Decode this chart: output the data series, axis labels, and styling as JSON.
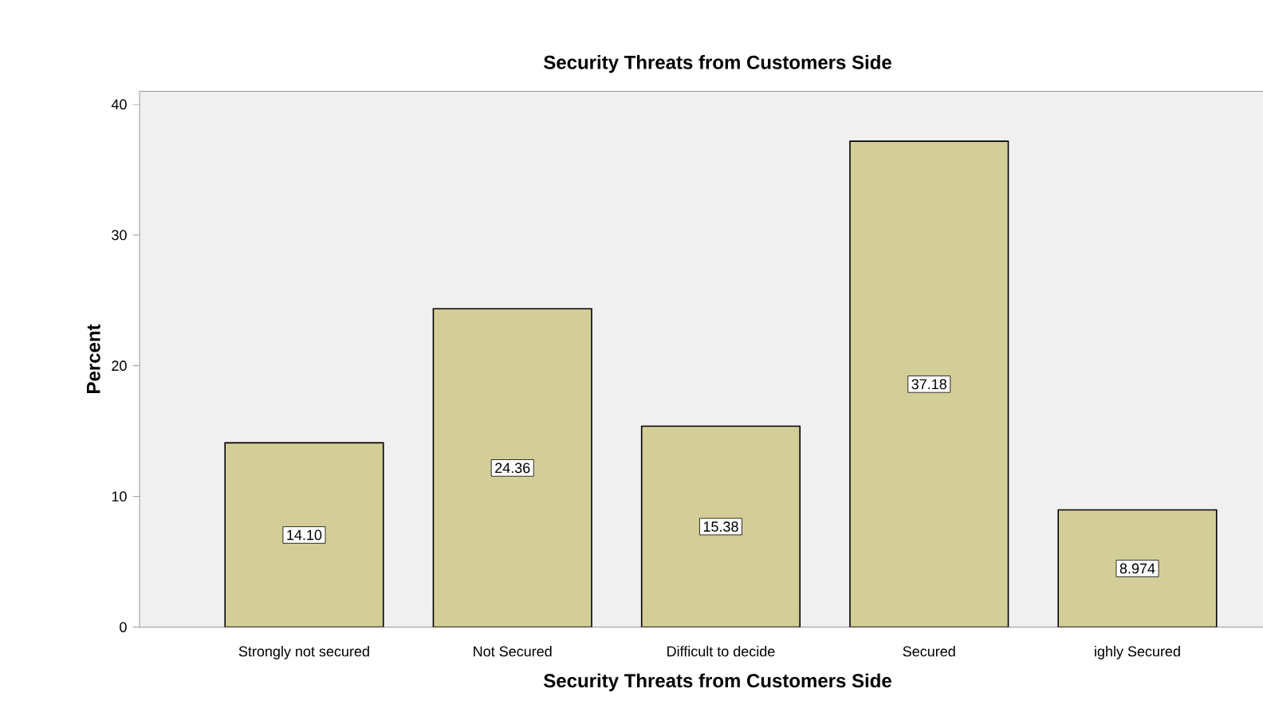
{
  "chart_data": {
    "type": "bar",
    "title": "Security Threats from Customers Side",
    "xlabel": "Security Threats from Customers Side",
    "ylabel": "Percent",
    "categories": [
      "Strongly not secured",
      "Not Secured",
      "Difficult to decide",
      "Secured",
      "ighly Secured"
    ],
    "values": [
      14.1,
      24.36,
      15.38,
      37.18,
      8.974
    ],
    "value_labels": [
      "14.10",
      "24.36",
      "15.38",
      "37.18",
      "8.974"
    ],
    "color": "#d3ce97",
    "ylim": [
      0,
      41
    ],
    "yticks": [
      0,
      10,
      20,
      30,
      40
    ],
    "grid": false
  }
}
